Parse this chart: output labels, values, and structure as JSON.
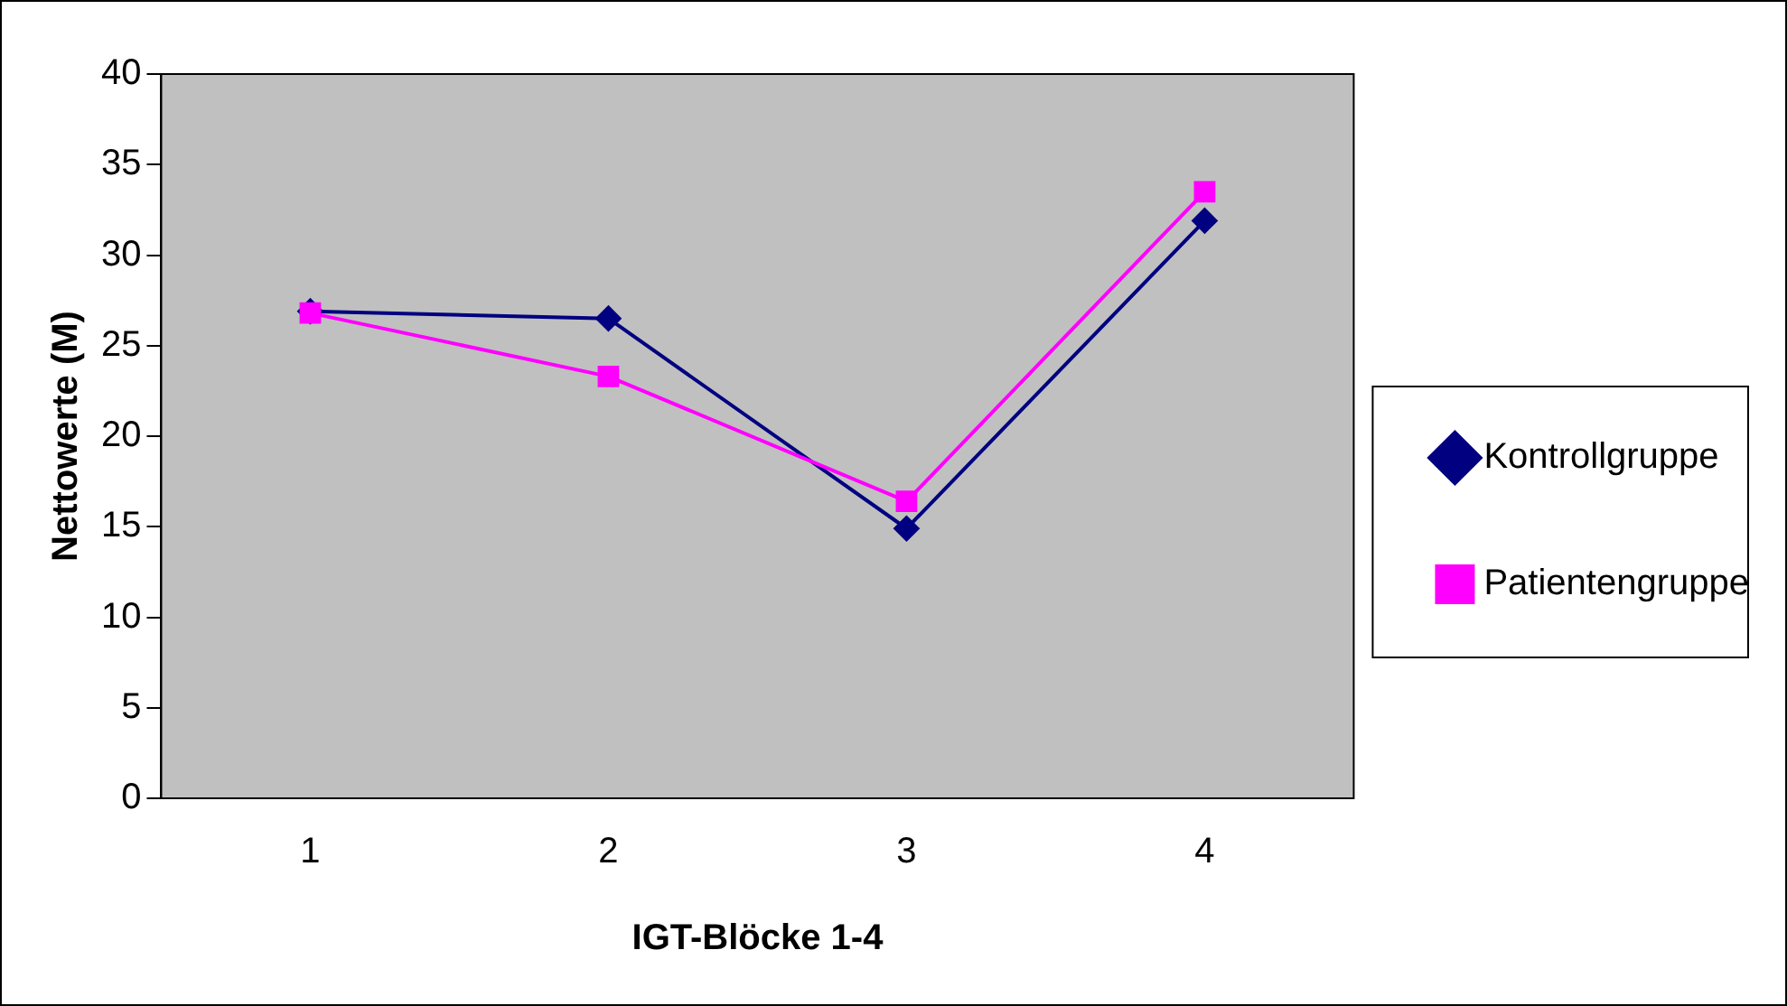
{
  "chart_data": {
    "type": "line",
    "xlabel": "IGT-Blöcke 1-4",
    "ylabel": "Nettowerte (M)",
    "categories": [
      "1",
      "2",
      "3",
      "4"
    ],
    "series": [
      {
        "name": "Kontrollgruppe",
        "color": "#000080",
        "marker": "diamond",
        "values": [
          26.9,
          26.5,
          14.9,
          31.9
        ]
      },
      {
        "name": "Patientengruppe",
        "color": "#ff00ff",
        "marker": "square",
        "values": [
          26.8,
          23.3,
          16.4,
          33.5
        ]
      }
    ],
    "ylim": [
      0,
      40
    ],
    "yticks": [
      0,
      5,
      10,
      15,
      20,
      25,
      30,
      35,
      40
    ],
    "grid": false,
    "legend": "right",
    "line_style": "solid"
  }
}
